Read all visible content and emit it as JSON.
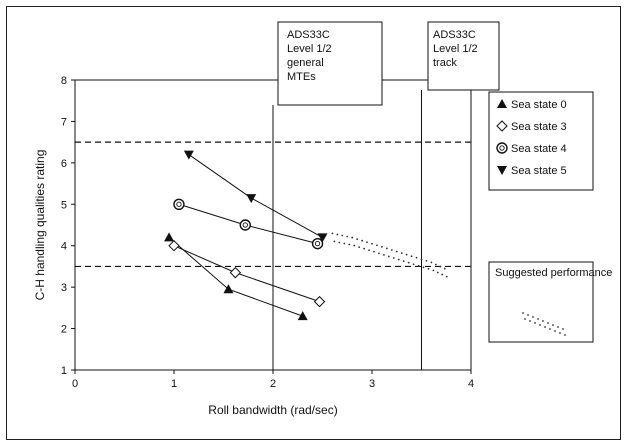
{
  "chart_data": {
    "type": "scatter",
    "xlabel": "Roll bandwidth (rad/sec)",
    "ylabel": "C-H handling qualities rating",
    "xlim": [
      0,
      4
    ],
    "ylim": [
      1,
      8
    ],
    "x_ticks": [
      "0",
      "1",
      "2",
      "3",
      "4"
    ],
    "y_ticks": [
      "1",
      "2",
      "3",
      "4",
      "5",
      "6",
      "7",
      "8"
    ],
    "grid": false,
    "legend_position": "right",
    "reference_lines": {
      "horizontal_dashed": [
        3.5,
        6.5
      ],
      "vertical_solid": [
        2.0,
        3.5
      ]
    },
    "region_labels": [
      {
        "lines": [
          "ADS33C",
          "Level 1/2",
          "general",
          "MTEs"
        ]
      },
      {
        "lines": [
          "ADS33C",
          "Level 1/2",
          "track"
        ]
      }
    ],
    "series": [
      {
        "name": "Sea state 0",
        "marker": "triangle-up",
        "points": [
          [
            0.95,
            4.2
          ],
          [
            1.55,
            2.95
          ],
          [
            2.3,
            2.3
          ]
        ]
      },
      {
        "name": "Sea state 3",
        "marker": "diamond",
        "points": [
          [
            1.0,
            4.0
          ],
          [
            1.62,
            3.35
          ],
          [
            2.47,
            2.65
          ]
        ]
      },
      {
        "name": "Sea state 4",
        "marker": "circle-dot",
        "points": [
          [
            1.05,
            5.0
          ],
          [
            1.72,
            4.5
          ],
          [
            2.45,
            4.05
          ]
        ]
      },
      {
        "name": "Sea state 5",
        "marker": "triangle-down",
        "points": [
          [
            1.15,
            6.2
          ],
          [
            1.78,
            5.15
          ],
          [
            2.5,
            4.2
          ]
        ]
      }
    ],
    "suggested_performance": {
      "name": "Suggested performance",
      "points": [
        [
          2.6,
          4.2
        ],
        [
          2.8,
          4.1
        ],
        [
          3.0,
          3.95
        ],
        [
          3.2,
          3.8
        ],
        [
          3.4,
          3.65
        ],
        [
          3.6,
          3.5
        ],
        [
          3.78,
          3.3
        ]
      ]
    },
    "colors": {
      "markers": "#111111",
      "lines": "#111111"
    }
  }
}
